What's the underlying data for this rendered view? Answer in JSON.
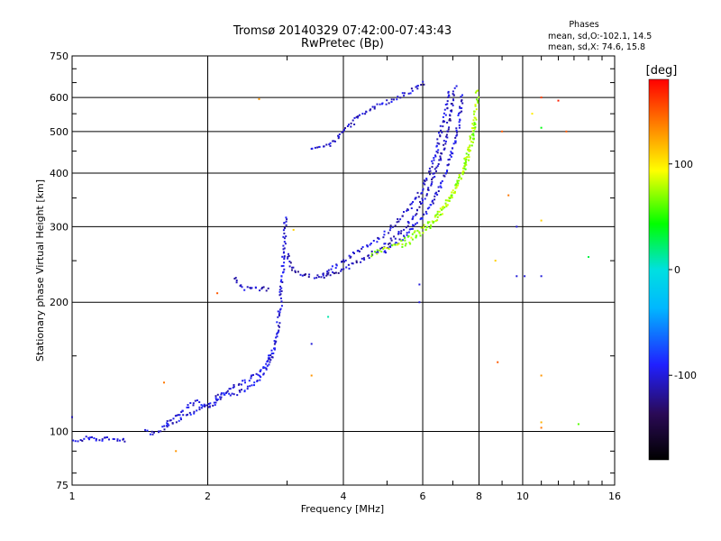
{
  "chart_data": {
    "type": "scatter",
    "title": "Tromsø 20140329 07:42:00-07:43:43",
    "subtitle": "RwPretec (Bp)",
    "xlabel": "Frequency [MHz]",
    "ylabel": "Stationary phase Virtual Height [km]",
    "x_scale": "log",
    "y_scale": "log",
    "xlim": [
      1,
      16
    ],
    "ylim": [
      75,
      750
    ],
    "x_ticks": [
      1,
      2,
      4,
      6,
      8,
      10,
      16
    ],
    "x_tick_labels": [
      "1",
      "2",
      "4",
      "6",
      "8",
      "10",
      "16"
    ],
    "y_ticks": [
      75,
      100,
      200,
      300,
      400,
      500,
      600,
      750
    ],
    "y_tick_labels": [
      "75",
      "100",
      "200",
      "300",
      "400",
      "500",
      "600",
      "750"
    ],
    "grid": true,
    "phases_box": {
      "title": "Phases",
      "line1": "mean, sd,O:-102.1, 14.5",
      "line2": "mean, sd,X: 74.6, 15.8"
    },
    "colorbar": {
      "label": "[deg]",
      "min": -180,
      "max": 180,
      "ticks": [
        100,
        0,
        -100
      ],
      "tick_labels": [
        "100",
        "0",
        "-100"
      ]
    },
    "traces": [
      {
        "phase": -102,
        "points": [
          [
            1.0,
            96
          ],
          [
            1.04,
            95
          ],
          [
            1.08,
            97
          ],
          [
            1.12,
            96
          ],
          [
            1.16,
            95
          ],
          [
            1.2,
            97
          ],
          [
            1.24,
            96
          ],
          [
            1.28,
            95
          ],
          [
            1.33,
            96
          ]
        ]
      },
      {
        "phase": -100,
        "points": [
          [
            1.45,
            100
          ],
          [
            1.5,
            99
          ],
          [
            1.55,
            100
          ],
          [
            1.6,
            102
          ],
          [
            1.65,
            104
          ],
          [
            1.7,
            106
          ],
          [
            1.75,
            108
          ],
          [
            1.8,
            110
          ],
          [
            1.86,
            111
          ],
          [
            1.92,
            113
          ],
          [
            1.98,
            115
          ],
          [
            2.04,
            117
          ],
          [
            2.1,
            120
          ],
          [
            2.16,
            122
          ],
          [
            2.22,
            124
          ],
          [
            2.3,
            121
          ],
          [
            2.38,
            124
          ],
          [
            2.46,
            127
          ],
          [
            2.54,
            130
          ],
          [
            2.62,
            134
          ],
          [
            2.7,
            140
          ],
          [
            2.76,
            148
          ],
          [
            2.82,
            160
          ],
          [
            2.86,
            175
          ],
          [
            2.9,
            195
          ],
          [
            2.92,
            220
          ],
          [
            2.94,
            250
          ],
          [
            2.96,
            280
          ],
          [
            2.98,
            320
          ]
        ]
      },
      {
        "phase": -98,
        "points": [
          [
            1.6,
            104
          ],
          [
            1.7,
            109
          ],
          [
            1.8,
            114
          ],
          [
            1.9,
            118
          ],
          [
            2.0,
            113
          ],
          [
            2.1,
            118
          ],
          [
            2.2,
            124
          ],
          [
            2.3,
            128
          ],
          [
            2.4,
            130
          ],
          [
            2.5,
            133
          ],
          [
            2.6,
            137
          ],
          [
            2.7,
            145
          ],
          [
            2.8,
            156
          ]
        ]
      },
      {
        "phase": -105,
        "points": [
          [
            2.3,
            228
          ],
          [
            2.35,
            220
          ],
          [
            2.4,
            216
          ],
          [
            2.5,
            215
          ],
          [
            2.6,
            214
          ],
          [
            2.7,
            215
          ],
          [
            2.75,
            217
          ]
        ]
      },
      {
        "phase": -108,
        "points": [
          [
            3.0,
            260
          ],
          [
            3.05,
            245
          ],
          [
            3.1,
            238
          ],
          [
            3.2,
            232
          ],
          [
            3.35,
            230
          ],
          [
            3.5,
            229
          ],
          [
            3.7,
            231
          ],
          [
            3.9,
            236
          ],
          [
            4.1,
            242
          ],
          [
            4.3,
            248
          ],
          [
            4.5,
            254
          ],
          [
            4.7,
            262
          ],
          [
            4.9,
            270
          ],
          [
            5.1,
            278
          ],
          [
            5.3,
            288
          ],
          [
            5.5,
            300
          ],
          [
            5.7,
            315
          ],
          [
            5.9,
            333
          ],
          [
            6.1,
            355
          ],
          [
            6.3,
            385
          ],
          [
            6.5,
            420
          ],
          [
            6.7,
            465
          ],
          [
            6.85,
            520
          ],
          [
            6.95,
            570
          ],
          [
            7.0,
            610
          ],
          [
            7.1,
            640
          ]
        ]
      },
      {
        "phase": -103,
        "points": [
          [
            3.6,
            230
          ],
          [
            3.8,
            240
          ],
          [
            4.0,
            250
          ],
          [
            4.2,
            258
          ],
          [
            4.4,
            266
          ],
          [
            4.6,
            274
          ],
          [
            4.8,
            282
          ],
          [
            5.0,
            292
          ],
          [
            5.2,
            303
          ],
          [
            5.4,
            316
          ],
          [
            5.6,
            330
          ],
          [
            5.8,
            348
          ],
          [
            6.0,
            370
          ],
          [
            6.2,
            400
          ],
          [
            6.4,
            440
          ],
          [
            6.55,
            490
          ],
          [
            6.7,
            540
          ],
          [
            6.8,
            590
          ],
          [
            6.9,
            630
          ]
        ]
      },
      {
        "phase": -100,
        "points": [
          [
            4.9,
            262
          ],
          [
            5.1,
            270
          ],
          [
            5.3,
            278
          ],
          [
            5.5,
            287
          ],
          [
            5.7,
            297
          ],
          [
            5.9,
            310
          ],
          [
            6.1,
            325
          ],
          [
            6.3,
            343
          ],
          [
            6.5,
            365
          ],
          [
            6.7,
            393
          ],
          [
            6.9,
            430
          ],
          [
            7.05,
            470
          ],
          [
            7.2,
            520
          ],
          [
            7.3,
            570
          ],
          [
            7.35,
            620
          ]
        ]
      },
      {
        "phase": 75,
        "points": [
          [
            4.6,
            258
          ],
          [
            4.8,
            263
          ],
          [
            5.0,
            268
          ],
          [
            5.2,
            272
          ],
          [
            5.4,
            277
          ],
          [
            5.6,
            283
          ],
          [
            5.8,
            290
          ],
          [
            6.0,
            298
          ],
          [
            6.2,
            306
          ],
          [
            6.4,
            316
          ],
          [
            6.6,
            328
          ],
          [
            6.8,
            342
          ],
          [
            7.0,
            360
          ],
          [
            7.2,
            385
          ],
          [
            7.4,
            415
          ],
          [
            7.6,
            455
          ],
          [
            7.75,
            500
          ],
          [
            7.85,
            545
          ],
          [
            7.9,
            590
          ],
          [
            7.95,
            630
          ]
        ]
      },
      {
        "phase": 72,
        "points": [
          [
            5.4,
            270
          ],
          [
            5.6,
            276
          ],
          [
            5.8,
            283
          ],
          [
            6.0,
            291
          ],
          [
            6.2,
            300
          ],
          [
            6.4,
            311
          ],
          [
            6.6,
            324
          ],
          [
            6.8,
            340
          ],
          [
            7.0,
            358
          ],
          [
            7.2,
            380
          ],
          [
            7.4,
            408
          ],
          [
            7.6,
            445
          ],
          [
            7.8,
            490
          ],
          [
            7.9,
            540
          ]
        ]
      },
      {
        "phase": -104,
        "points": [
          [
            3.4,
            455
          ],
          [
            3.5,
            458
          ],
          [
            3.6,
            462
          ],
          [
            3.7,
            466
          ],
          [
            3.8,
            470
          ],
          [
            4.0,
            500
          ],
          [
            4.1,
            510
          ],
          [
            4.2,
            525
          ],
          [
            4.3,
            540
          ],
          [
            4.45,
            555
          ],
          [
            4.6,
            565
          ],
          [
            4.8,
            575
          ],
          [
            5.0,
            585
          ],
          [
            5.2,
            595
          ],
          [
            5.4,
            608
          ],
          [
            5.6,
            620
          ],
          [
            5.8,
            632
          ],
          [
            6.0,
            645
          ],
          [
            6.1,
            650
          ]
        ]
      }
    ],
    "scattered_points": [
      {
        "x": 10.5,
        "y": 550,
        "phase": 100
      },
      {
        "x": 11.0,
        "y": 600,
        "phase": 160
      },
      {
        "x": 12.0,
        "y": 590,
        "phase": 170
      },
      {
        "x": 12.5,
        "y": 500,
        "phase": 150
      },
      {
        "x": 11.0,
        "y": 510,
        "phase": 40
      },
      {
        "x": 9.0,
        "y": 500,
        "phase": 150
      },
      {
        "x": 9.3,
        "y": 355,
        "phase": 140
      },
      {
        "x": 9.7,
        "y": 300,
        "phase": -100
      },
      {
        "x": 9.7,
        "y": 230,
        "phase": -100
      },
      {
        "x": 10.1,
        "y": 230,
        "phase": -100
      },
      {
        "x": 11.0,
        "y": 310,
        "phase": 110
      },
      {
        "x": 11.0,
        "y": 230,
        "phase": -100
      },
      {
        "x": 14.0,
        "y": 255,
        "phase": 30
      },
      {
        "x": 8.7,
        "y": 250,
        "phase": 110
      },
      {
        "x": 8.8,
        "y": 145,
        "phase": 150
      },
      {
        "x": 11.0,
        "y": 135,
        "phase": 130
      },
      {
        "x": 11.0,
        "y": 105,
        "phase": 120
      },
      {
        "x": 11.0,
        "y": 102,
        "phase": 140
      },
      {
        "x": 13.3,
        "y": 104,
        "phase": 60
      },
      {
        "x": 1.7,
        "y": 90,
        "phase": 130
      },
      {
        "x": 3.4,
        "y": 160,
        "phase": -100
      },
      {
        "x": 3.4,
        "y": 135,
        "phase": 130
      },
      {
        "x": 3.7,
        "y": 185,
        "phase": 10
      },
      {
        "x": 5.9,
        "y": 220,
        "phase": -100
      },
      {
        "x": 5.9,
        "y": 200,
        "phase": -100
      },
      {
        "x": 2.6,
        "y": 595,
        "phase": 130
      },
      {
        "x": 3.1,
        "y": 295,
        "phase": 110
      },
      {
        "x": 2.1,
        "y": 210,
        "phase": 150
      },
      {
        "x": 1.6,
        "y": 130,
        "phase": 140
      },
      {
        "x": 1.0,
        "y": 108,
        "phase": -110
      }
    ]
  }
}
